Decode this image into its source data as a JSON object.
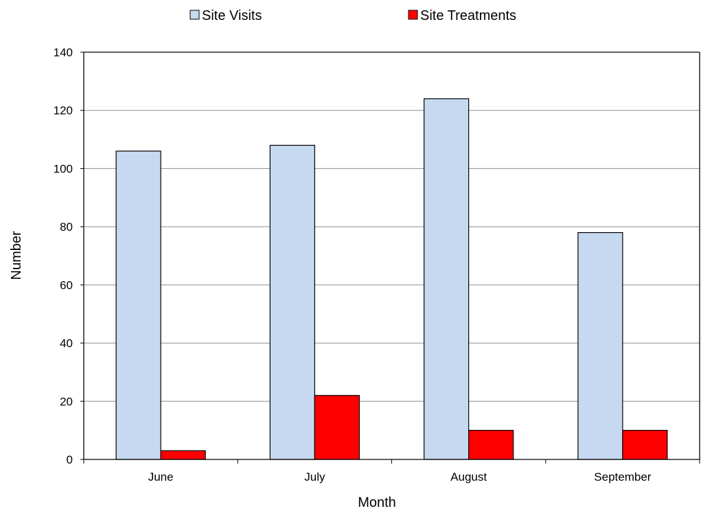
{
  "chart_data": {
    "type": "bar",
    "title": "",
    "xlabel": "Month",
    "ylabel": "Number",
    "categories": [
      "June",
      "July",
      "August",
      "September"
    ],
    "series": [
      {
        "name": "Site Visits",
        "values": [
          106,
          108,
          124,
          78
        ],
        "color": "#c6d9f0"
      },
      {
        "name": "Site Treatments",
        "values": [
          3,
          22,
          10,
          10
        ],
        "color": "#ff0000"
      }
    ],
    "ylim": [
      0,
      140
    ],
    "yticks": [
      0,
      20,
      40,
      60,
      80,
      100,
      120,
      140
    ],
    "grid": true,
    "legend_position": "top"
  }
}
